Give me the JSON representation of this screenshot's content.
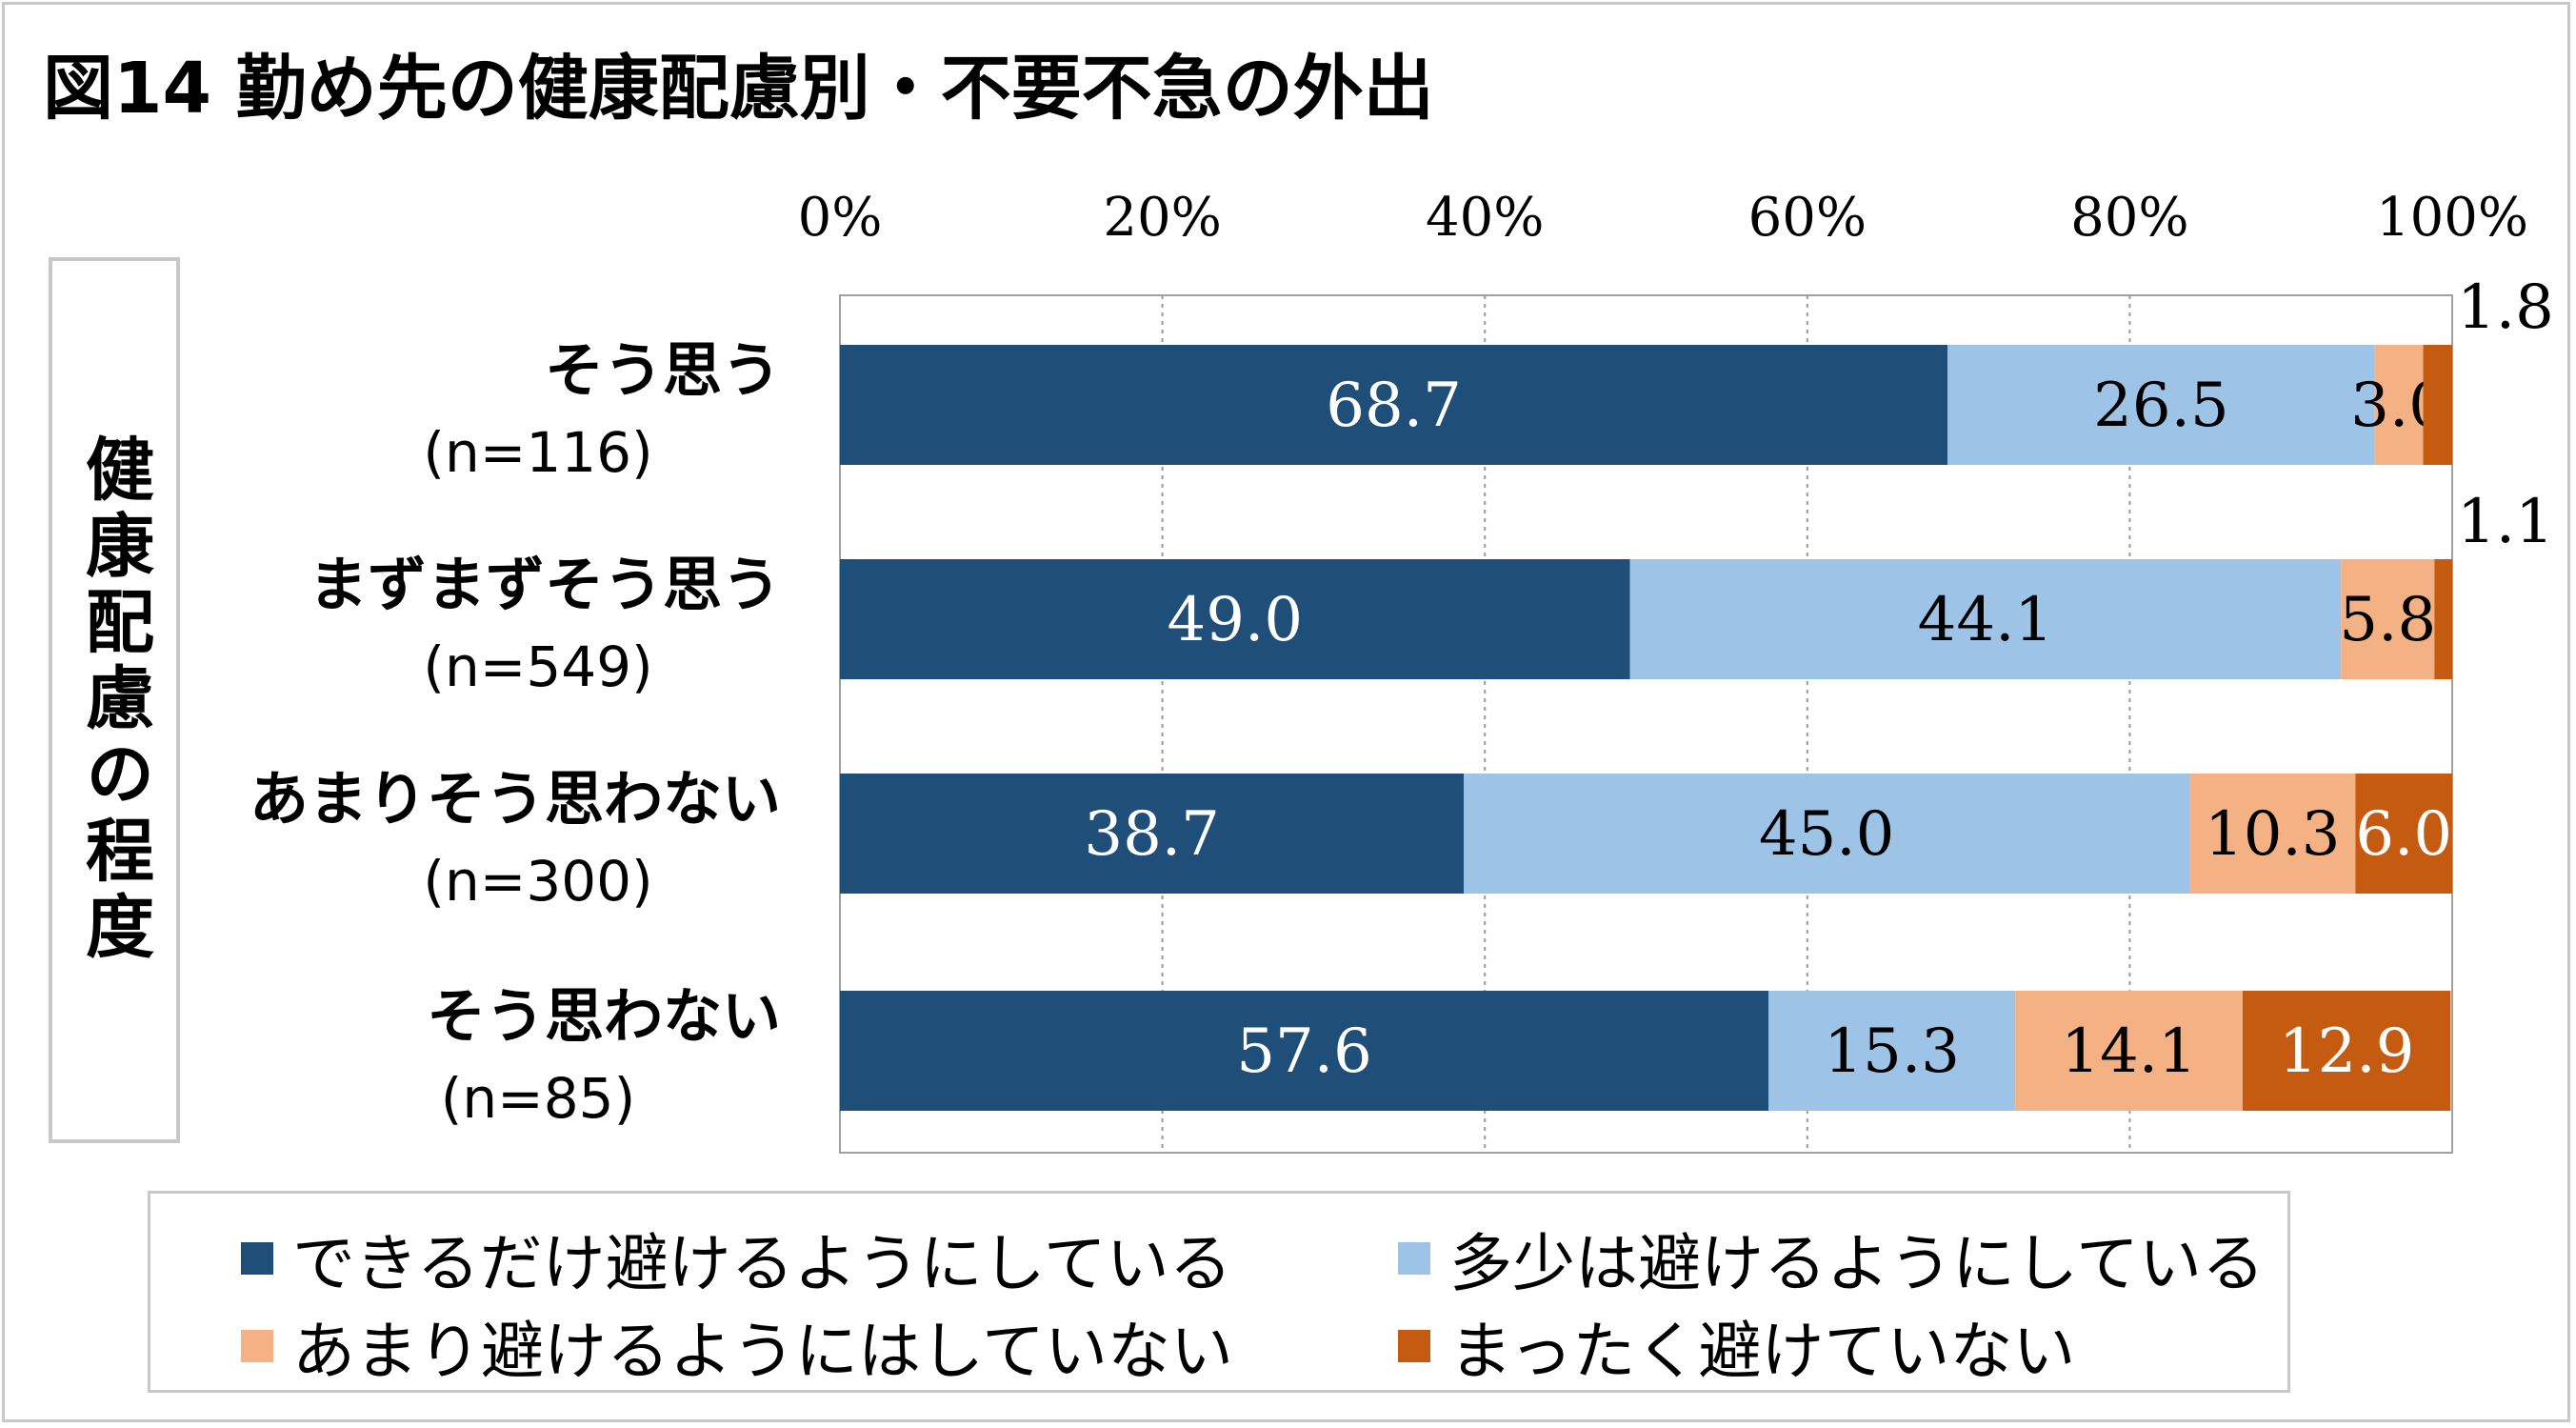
{
  "title": "図14 勤め先の健康配慮別・不要不急の外出",
  "ylabel": "健康配慮の程度",
  "legend": [
    {
      "label": "できるだけ避けるようにしている",
      "color": "#1f4e79"
    },
    {
      "label": "多少は避けるようにしている",
      "color": "#9dc3e6"
    },
    {
      "label": "あまり避けるようにはしていない",
      "color": "#f4b183"
    },
    {
      "label": "まったく避けていない",
      "color": "#c55a11"
    }
  ],
  "chart_data": {
    "type": "bar",
    "orientation": "horizontal",
    "stacked": true,
    "xlim": [
      0,
      100
    ],
    "xticks": [
      "0%",
      "20%",
      "40%",
      "60%",
      "80%",
      "100%"
    ],
    "grid": true,
    "legend_position": "bottom",
    "categories": [
      {
        "label": "そう思う",
        "n": "(n=116)"
      },
      {
        "label": "まずまずそう思う",
        "n": "(n=549)"
      },
      {
        "label": "あまりそう思わない",
        "n": "(n=300)"
      },
      {
        "label": "そう思わない",
        "n": "(n=85)"
      }
    ],
    "series": [
      {
        "name": "できるだけ避けるようにしている",
        "color": "#1f4e79",
        "label_color": "#ffffff",
        "values": [
          68.7,
          49.0,
          38.7,
          57.6
        ],
        "labels": [
          "68.7",
          "49.0",
          "38.7",
          "57.6"
        ]
      },
      {
        "name": "多少は避けるようにしている",
        "color": "#9dc3e6",
        "label_color": "#000000",
        "values": [
          26.5,
          44.1,
          45.0,
          15.3
        ],
        "labels": [
          "26.5",
          "44.1",
          "45.0",
          "15.3"
        ]
      },
      {
        "name": "あまり避けるようにはしていない",
        "color": "#f4b183",
        "label_color": "#000000",
        "values": [
          3.0,
          5.8,
          10.3,
          14.1
        ],
        "labels": [
          "3.0",
          "5.8",
          "10.3",
          "14.1"
        ]
      },
      {
        "name": "まったく避けていない",
        "color": "#c55a11",
        "label_color": "#ffffff",
        "values": [
          1.8,
          1.1,
          6.0,
          12.9
        ],
        "labels": [
          "1.8",
          "1.1",
          "6.0",
          "12.9"
        ]
      }
    ]
  }
}
